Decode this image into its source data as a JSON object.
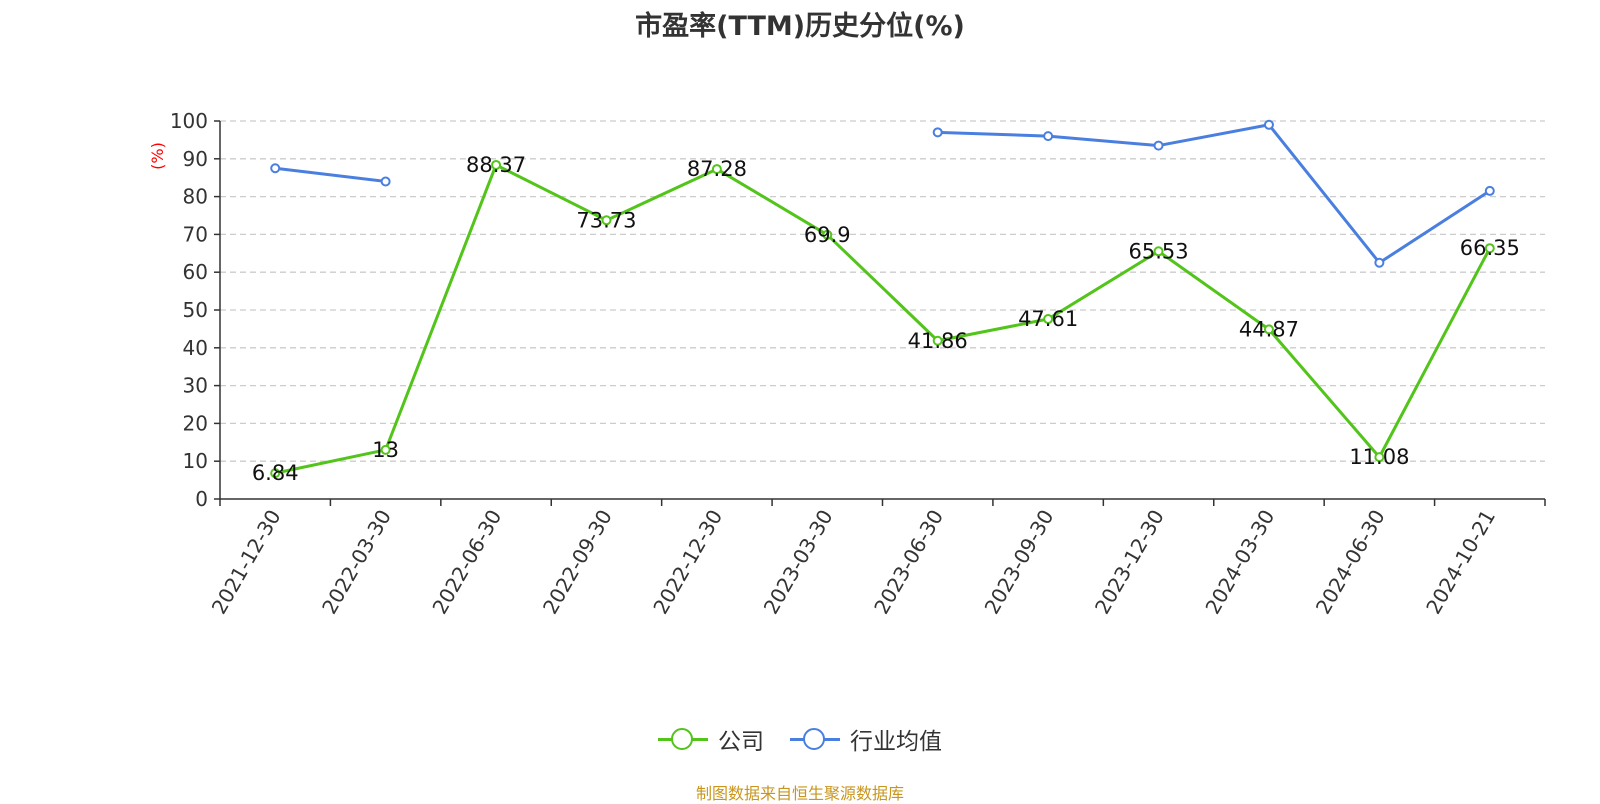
{
  "chart_data": {
    "type": "line",
    "title": "市盈率(TTM)历史分位(%)",
    "ylabel": "(%)",
    "xlabel": "",
    "ylim": [
      0,
      100
    ],
    "yticks": [
      0,
      10,
      20,
      30,
      40,
      50,
      60,
      70,
      80,
      90,
      100
    ],
    "categories": [
      "2021-12-30",
      "2022-03-30",
      "2022-06-30",
      "2022-09-30",
      "2022-12-30",
      "2023-03-30",
      "2023-06-30",
      "2023-09-30",
      "2023-12-30",
      "2024-03-30",
      "2024-06-30",
      "2024-10-21"
    ],
    "grid": true,
    "legend_position": "bottom",
    "series": [
      {
        "name": "公司",
        "color": "#52c41a",
        "values": [
          6.84,
          13,
          88.37,
          73.73,
          87.28,
          69.9,
          41.86,
          47.61,
          65.53,
          44.87,
          11.08,
          66.35
        ],
        "labels": [
          "6.84",
          "13",
          "88.37",
          "73.73",
          "87.28",
          "69.9",
          "41.86",
          "47.61",
          "65.53",
          "44.87",
          "11.08",
          "66.35"
        ]
      },
      {
        "name": "行业均值",
        "color": "#4a7fe0",
        "values": [
          87.5,
          84,
          null,
          null,
          null,
          null,
          97,
          96,
          93.5,
          99,
          62.5,
          81.5
        ]
      }
    ]
  },
  "source": "制图数据来自恒生聚源数据库"
}
